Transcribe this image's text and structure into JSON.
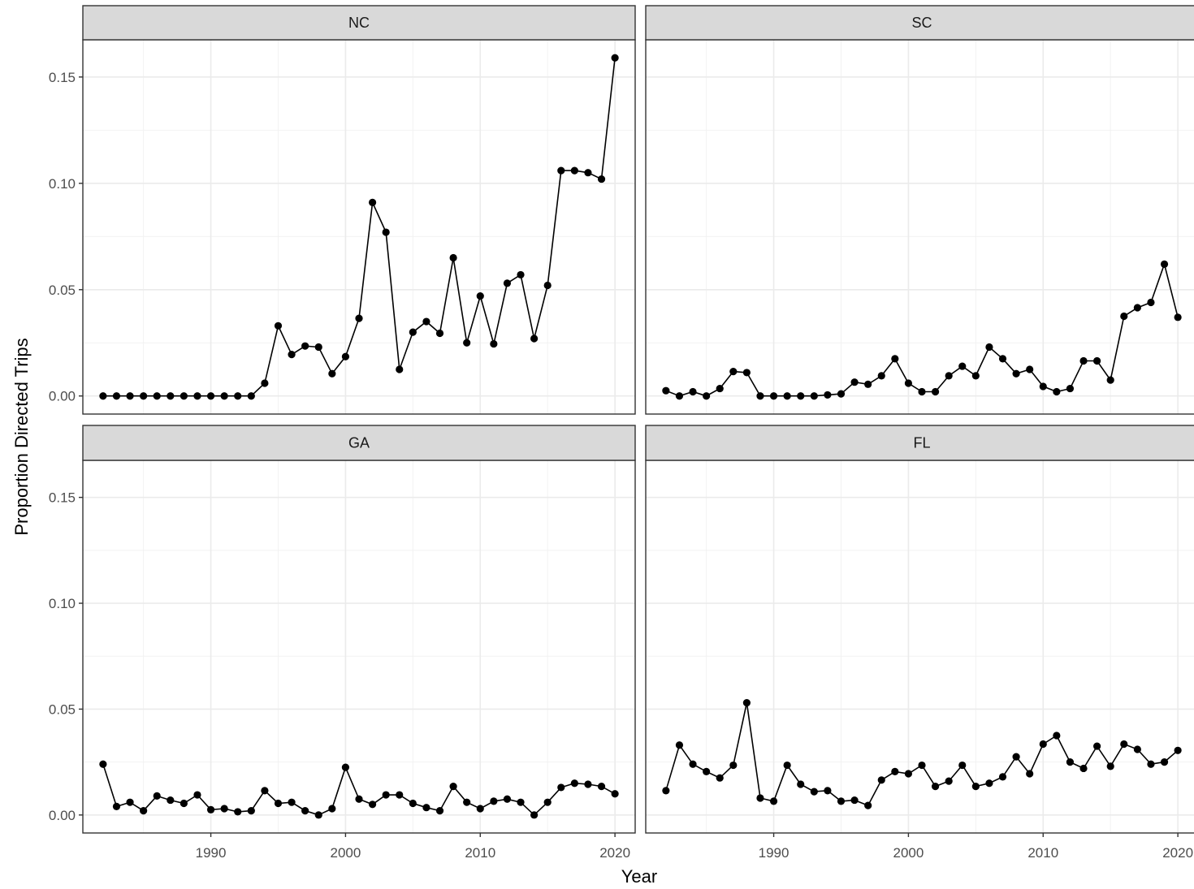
{
  "chart_data": {
    "type": "line",
    "xlabel": "Year",
    "ylabel": "Proportion Directed Trips",
    "xlim": [
      1980.5,
      2021.5
    ],
    "ylim": [
      -0.0085,
      0.1675
    ],
    "x_ticks": [
      1990,
      2000,
      2010,
      2020
    ],
    "x_tick_labels": [
      "1990",
      "2000",
      "2010",
      "2020"
    ],
    "y_ticks": [
      0,
      0.05,
      0.1,
      0.15
    ],
    "y_tick_labels": [
      "0.00",
      "0.05",
      "0.10",
      "0.15"
    ],
    "grid": true,
    "x": [
      1982,
      1983,
      1984,
      1985,
      1986,
      1987,
      1988,
      1989,
      1990,
      1991,
      1992,
      1993,
      1994,
      1995,
      1996,
      1997,
      1998,
      1999,
      2000,
      2001,
      2002,
      2003,
      2004,
      2005,
      2006,
      2007,
      2008,
      2009,
      2010,
      2011,
      2012,
      2013,
      2014,
      2015,
      2016,
      2017,
      2018,
      2019,
      2020
    ],
    "panels": [
      {
        "label": "NC",
        "values": [
          0,
          0,
          0,
          0,
          0,
          0,
          0,
          0,
          0,
          0,
          0,
          0,
          0.006,
          0.033,
          0.0195,
          0.0235,
          0.023,
          0.0105,
          0.0185,
          0.0365,
          0.091,
          0.077,
          0.0125,
          0.03,
          0.035,
          0.0295,
          0.065,
          0.025,
          0.047,
          0.0245,
          0.053,
          0.057,
          0.027,
          0.052,
          0.106,
          0.106,
          0.105,
          0.102,
          0.159
        ]
      },
      {
        "label": "SC",
        "values": [
          0.0025,
          0,
          0.002,
          0,
          0.0035,
          0.0115,
          0.011,
          0,
          0,
          0,
          0,
          0,
          0.0005,
          0.001,
          0.0065,
          0.0055,
          0.0095,
          0.0175,
          0.006,
          0.002,
          0.002,
          0.0095,
          0.014,
          0.0095,
          0.023,
          0.0175,
          0.0105,
          0.0125,
          0.0045,
          0.002,
          0.0035,
          0.0165,
          0.0165,
          0.0075,
          0.0375,
          0.0415,
          0.044,
          0.062,
          0.037
        ]
      },
      {
        "label": "GA",
        "values": [
          0.024,
          0.004,
          0.006,
          0.002,
          0.009,
          0.007,
          0.0055,
          0.0095,
          0.0025,
          0.003,
          0.0015,
          0.002,
          0.0115,
          0.0055,
          0.006,
          0.002,
          0,
          0.003,
          0.0225,
          0.0075,
          0.005,
          0.0095,
          0.0095,
          0.0055,
          0.0035,
          0.002,
          0.0135,
          0.006,
          0.003,
          0.0065,
          0.0075,
          0.006,
          0,
          0.006,
          0.013,
          0.015,
          0.0145,
          0.0135,
          0.01
        ]
      },
      {
        "label": "FL",
        "values": [
          0.0115,
          0.033,
          0.024,
          0.0205,
          0.0175,
          0.0235,
          0.053,
          0.008,
          0.0065,
          0.0235,
          0.0145,
          0.011,
          0.0115,
          0.0065,
          0.007,
          0.0045,
          0.0165,
          0.0205,
          0.0195,
          0.0235,
          0.0135,
          0.016,
          0.0235,
          0.0135,
          0.015,
          0.018,
          0.0275,
          0.0195,
          0.0335,
          0.0375,
          0.025,
          0.022,
          0.0325,
          0.023,
          0.0335,
          0.031,
          0.024,
          0.025,
          0.0305
        ]
      }
    ]
  }
}
